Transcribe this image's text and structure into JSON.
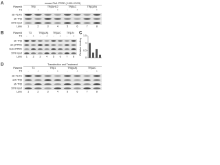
{
  "panel_a": {
    "label": "A",
    "header": "mouse Ptc1 PPRE (-1901/-2133)",
    "header_rows": [
      {
        "name": "Plasmid",
        "cells": [
          "TRβ",
          "TRβΔH12",
          "TRβΔC",
          "TRβ(ΔN)"
        ]
      },
      {
        "name": "T3",
        "cells": [
          "-",
          "+",
          "-",
          "+",
          "-",
          "+",
          "-",
          "+"
        ]
      }
    ],
    "blots": [
      "ab-FLAG",
      "ab-TRβ",
      "10% input"
    ],
    "lane_title": "Lane",
    "lanes": [
      "1",
      "2",
      "3",
      "4",
      "5",
      "6",
      "7",
      "8"
    ]
  },
  "panel_b": {
    "label": "B",
    "header_rows": [
      {
        "name": "Plasmid",
        "cells": [
          "T3",
          "TRβ(ΔN)",
          "TRβΔC",
          "TRβ-N"
        ]
      },
      {
        "name": "T3",
        "cells": [
          "-",
          "+",
          "-",
          "+",
          "-",
          "+",
          "-",
          "+"
        ]
      }
    ],
    "blots": [
      "ab-TRβ",
      "ab-pPPRE",
      "Gal4-PPRE",
      "10% input"
    ],
    "lane_title": "Lane",
    "lanes": [
      "1",
      "2",
      "3",
      "4",
      "5",
      "6",
      "7",
      "8"
    ]
  },
  "panel_c": {
    "label": "C",
    "y_label": "Relative binding",
    "values": [
      1,
      0.35,
      0.6,
      0.2
    ],
    "color": "#555555",
    "ylim": [
      0,
      1.5
    ],
    "yticks": [
      0,
      0.5,
      1,
      1.5
    ]
  },
  "panel_d": {
    "label": "D",
    "header": "Transfection and Treatment",
    "header_rows": [
      {
        "name": "Plasmid",
        "cells": [
          "T3",
          "TRβ1",
          "TRβ(ΔN)",
          "TRβΔC"
        ]
      },
      {
        "name": "T3",
        "cells": [
          "-",
          "+",
          "-",
          "+",
          "-",
          "+",
          "-",
          "+"
        ]
      }
    ],
    "blots": [
      "ab-FLAG",
      "anti-TRβ",
      "ab-TRβ",
      "10% input"
    ],
    "lane_title": "Lane",
    "lanes": [
      "1",
      "2",
      "3",
      "4",
      "5",
      "6",
      "7",
      "8"
    ]
  }
}
